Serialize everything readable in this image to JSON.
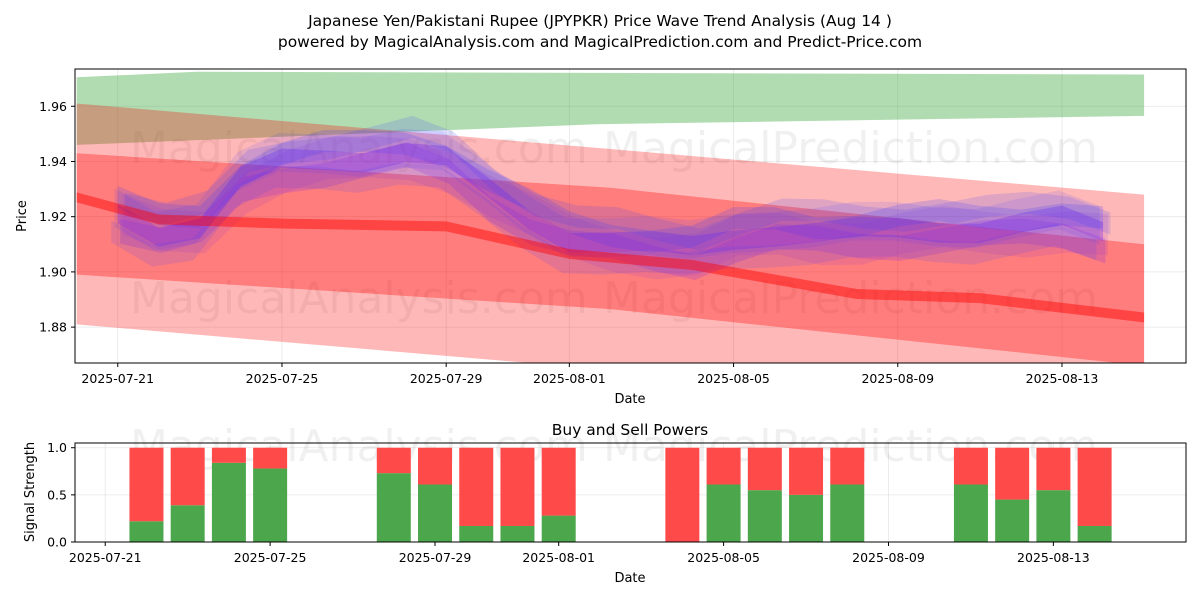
{
  "title_line1": "Japanese Yen/Pakistani Rupee (JPYPKR) Price Wave Trend Analysis (Aug 14 )",
  "title_line2": "powered by MagicalAnalysis.com and MagicalPrediction.com and Predict-Price.com",
  "watermarks": [
    "MagicalAnalysis.com",
    "MagicalPrediction.com"
  ],
  "colors": {
    "green_band": "#2ca02c",
    "red_band": "#ff0000",
    "blue_wave": "#3d3dff",
    "purple_wave": "#8a2be2",
    "bar_buy": "#4ca64c",
    "bar_sell": "#ff4a4a"
  },
  "chart_data": [
    {
      "type": "area",
      "title": "",
      "xlabel": "Date",
      "ylabel": "Price",
      "xlim": [
        "2025-07-19T23:00",
        "2025-08-16T00:30"
      ],
      "ylim": [
        1.867,
        1.9735
      ],
      "x_ticks": [
        "2025-07-21",
        "2025-07-25",
        "2025-07-29",
        "2025-08-01",
        "2025-08-05",
        "2025-08-09",
        "2025-08-13"
      ],
      "y_ticks": [
        1.88,
        1.9,
        1.92,
        1.94,
        1.96
      ],
      "grid": true,
      "green_band": {
        "x": [
          "2025-07-20",
          "2025-08-15"
        ],
        "upper": [
          1.9705,
          1.9715
        ],
        "lower": [
          1.946,
          1.9565
        ]
      },
      "red_trend": {
        "x": [
          "2025-07-20",
          "2025-07-22",
          "2025-07-25",
          "2025-07-29",
          "2025-08-01",
          "2025-08-04",
          "2025-08-08",
          "2025-08-11",
          "2025-08-15"
        ],
        "center": [
          1.927,
          1.919,
          1.9175,
          1.9165,
          1.9065,
          1.9025,
          1.892,
          1.8905,
          1.8835
        ]
      },
      "red_channel": {
        "x": [
          "2025-07-20",
          "2025-08-15"
        ],
        "center_start": 1.921,
        "center_end": 1.888
      },
      "blue_waves": {
        "x": [
          "2025-07-21",
          "2025-07-22",
          "2025-07-23",
          "2025-07-24",
          "2025-07-25",
          "2025-07-26",
          "2025-07-27",
          "2025-07-28",
          "2025-07-29",
          "2025-07-30",
          "2025-07-31",
          "2025-08-01",
          "2025-08-02",
          "2025-08-03",
          "2025-08-04",
          "2025-08-05",
          "2025-08-06",
          "2025-08-07",
          "2025-08-08",
          "2025-08-09",
          "2025-08-10",
          "2025-08-11",
          "2025-08-12",
          "2025-08-13",
          "2025-08-14"
        ],
        "center": [
          1.921,
          1.915,
          1.917,
          1.933,
          1.939,
          1.941,
          1.942,
          1.944,
          1.94,
          1.929,
          1.92,
          1.913,
          1.911,
          1.909,
          1.908,
          1.913,
          1.915,
          1.914,
          1.914,
          1.915,
          1.916,
          1.916,
          1.917,
          1.918,
          1.914
        ]
      }
    },
    {
      "type": "bar",
      "title": "Buy and Sell Powers",
      "xlabel": "Date",
      "ylabel": "Signal Strength",
      "ylim": [
        0,
        1.05
      ],
      "y_ticks": [
        0.0,
        0.5,
        1.0
      ],
      "x_ticks": [
        "2025-07-21",
        "2025-07-25",
        "2025-07-29",
        "2025-08-01",
        "2025-08-05",
        "2025-08-09",
        "2025-08-13"
      ],
      "grid": true,
      "series": [
        {
          "name": "buy",
          "x": [
            "2025-07-22",
            "2025-07-23",
            "2025-07-24",
            "2025-07-25",
            "2025-07-28",
            "2025-07-29",
            "2025-07-30",
            "2025-07-31",
            "2025-08-01",
            "2025-08-04",
            "2025-08-05",
            "2025-08-06",
            "2025-08-07",
            "2025-08-08",
            "2025-08-11",
            "2025-08-12",
            "2025-08-13",
            "2025-08-14"
          ],
          "values": [
            0.22,
            0.39,
            0.84,
            0.78,
            0.73,
            0.61,
            0.17,
            0.17,
            0.28,
            0.0,
            0.61,
            0.55,
            0.5,
            0.61,
            0.61,
            0.45,
            0.55,
            0.17
          ]
        },
        {
          "name": "sell",
          "values": [
            0.78,
            0.61,
            0.16,
            0.22,
            0.27,
            0.39,
            0.83,
            0.83,
            0.72,
            1.0,
            0.39,
            0.45,
            0.5,
            0.39,
            0.39,
            0.55,
            0.45,
            0.83
          ]
        }
      ]
    }
  ]
}
